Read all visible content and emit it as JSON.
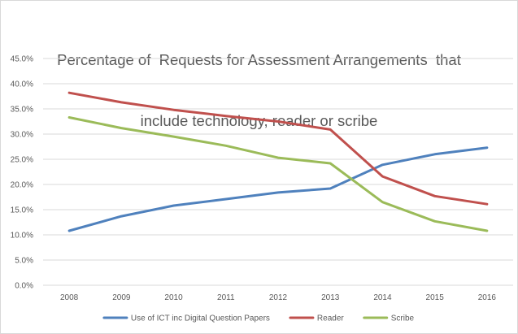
{
  "chart_data": {
    "type": "line",
    "title_lines": [
      "Percentage of  Requests for Assessment Arrangements  that",
      "include technology, reader or scribe"
    ],
    "x": [
      "2008",
      "2009",
      "2010",
      "2011",
      "2012",
      "2013",
      "2014",
      "2015",
      "2016"
    ],
    "y_ticks": [
      "0.0%",
      "5.0%",
      "10.0%",
      "15.0%",
      "20.0%",
      "25.0%",
      "30.0%",
      "35.0%",
      "40.0%",
      "45.0%"
    ],
    "ylim": [
      0,
      45
    ],
    "y_unit": "%",
    "grid": true,
    "legend_position": "bottom",
    "series": [
      {
        "name": "Use of ICT inc Digital Question Papers",
        "color": "#4f81bd",
        "values": [
          10.8,
          13.7,
          15.8,
          17.1,
          18.4,
          19.2,
          23.9,
          26.0,
          27.3
        ]
      },
      {
        "name": "Reader",
        "color": "#c0504d",
        "values": [
          38.2,
          36.3,
          34.8,
          33.6,
          32.5,
          30.9,
          21.6,
          17.7,
          16.1
        ]
      },
      {
        "name": "Scribe",
        "color": "#9bbb59",
        "values": [
          33.3,
          31.2,
          29.5,
          27.7,
          25.3,
          24.2,
          16.5,
          12.7,
          10.8
        ]
      }
    ]
  }
}
